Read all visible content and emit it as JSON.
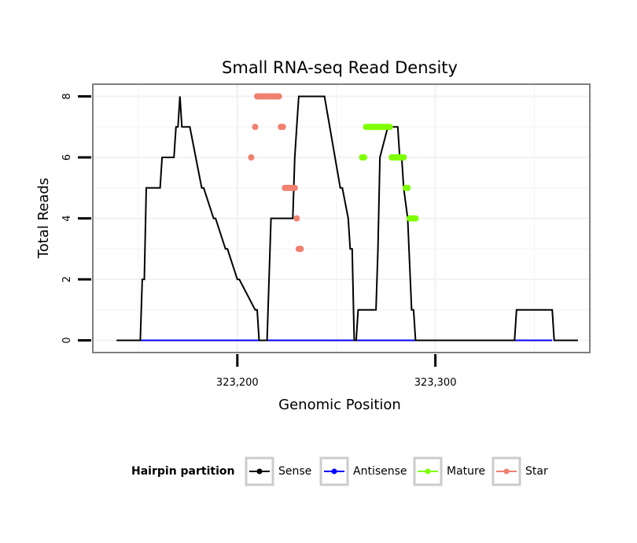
{
  "colors": {
    "sense": "#000000",
    "antisense": "#0000ff",
    "mature": "#7fff00",
    "star": "#f08070",
    "panel_border": "#7f7f7f",
    "grid": "#f2f2f2"
  },
  "chart_data": {
    "type": "line",
    "title": "Small RNA-seq Read Density",
    "xlabel": "Genomic Position",
    "ylabel": "Total Reads",
    "xlim": [
      323127,
      323378
    ],
    "ylim": [
      -0.4,
      8.4
    ],
    "x_ticks": [
      323200,
      323300
    ],
    "x_tick_labels": [
      "323,200",
      "323,300"
    ],
    "y_ticks": [
      0,
      2,
      4,
      6,
      8
    ],
    "y_tick_labels": [
      "0",
      "2",
      "4",
      "6",
      "8"
    ],
    "legend": {
      "title": "Hairpin partition",
      "position": "bottom",
      "entries": [
        {
          "key": "sense",
          "label": "Sense"
        },
        {
          "key": "antisense",
          "label": "Antisense"
        },
        {
          "key": "mature",
          "label": "Mature"
        },
        {
          "key": "star",
          "label": "Star"
        }
      ]
    },
    "series": [
      {
        "name": "Sense",
        "key": "sense",
        "kind": "line",
        "x": [
          323139,
          323151,
          323152,
          323153,
          323154,
          323161,
          323162,
          323168,
          323169,
          323170,
          323171,
          323172,
          323173,
          323174,
          323175,
          323176,
          323182,
          323183,
          323188,
          323189,
          323194,
          323195,
          323200,
          323201,
          323209,
          323210,
          323211,
          323215,
          323216,
          323217,
          323218,
          323219,
          323220,
          323228,
          323229,
          323230,
          323231,
          323232,
          323233,
          323234,
          323235,
          323236,
          323237,
          323238,
          323239,
          323243,
          323244,
          323252,
          323253,
          323256,
          323257,
          323258,
          323259,
          323260,
          323261,
          323262,
          323263,
          323264,
          323270,
          323271,
          323272,
          323276,
          323277,
          323278,
          323279,
          323280,
          323281,
          323282,
          323283,
          323284,
          323286,
          323288,
          323289,
          323290,
          323340,
          323341,
          323359,
          323360,
          323372
        ],
        "y": [
          0,
          0,
          2,
          2,
          5,
          5,
          6,
          6,
          7,
          7,
          8,
          7,
          7,
          7,
          7,
          7,
          5,
          5,
          4,
          4,
          3,
          3,
          2,
          2,
          1,
          1,
          0,
          0,
          2,
          4,
          4,
          4,
          4,
          4,
          6,
          7,
          8,
          8,
          8,
          8,
          8,
          8,
          8,
          8,
          8,
          8,
          8,
          5,
          5,
          4,
          3,
          3,
          0,
          0,
          1,
          1,
          1,
          1,
          1,
          3,
          6,
          7,
          7,
          7,
          7,
          7,
          7,
          6,
          6,
          5,
          4,
          1,
          1,
          0,
          0,
          1,
          1,
          0,
          0
        ]
      },
      {
        "name": "Antisense",
        "key": "antisense",
        "kind": "line",
        "x": [
          323140,
          323359
        ],
        "y": [
          0,
          0
        ]
      },
      {
        "name": "Mature",
        "key": "mature",
        "kind": "points",
        "x": [
          323263,
          323264,
          323265,
          323266,
          323267,
          323268,
          323269,
          323270,
          323271,
          323272,
          323273,
          323274,
          323275,
          323276,
          323277,
          323278,
          323279,
          323280,
          323281,
          323282,
          323283,
          323284,
          323285,
          323286,
          323287,
          323288,
          323289,
          323290
        ],
        "y": [
          6,
          6,
          7,
          7,
          7,
          7,
          7,
          7,
          7,
          7,
          7,
          7,
          7,
          7,
          7,
          6,
          6,
          6,
          6,
          6,
          6,
          6,
          5,
          5,
          4,
          4,
          4,
          4
        ]
      },
      {
        "name": "Star",
        "key": "star",
        "kind": "points",
        "x": [
          323207,
          323209,
          323210,
          323211,
          323212,
          323213,
          323214,
          323215,
          323216,
          323217,
          323218,
          323219,
          323220,
          323221,
          323222,
          323223,
          323224,
          323225,
          323226,
          323227,
          323228,
          323229,
          323230,
          323231,
          323232
        ],
        "y": [
          6,
          7,
          8,
          8,
          8,
          8,
          8,
          8,
          8,
          8,
          8,
          8,
          8,
          8,
          7,
          7,
          5,
          5,
          5,
          5,
          5,
          5,
          4,
          3,
          3
        ]
      }
    ]
  }
}
